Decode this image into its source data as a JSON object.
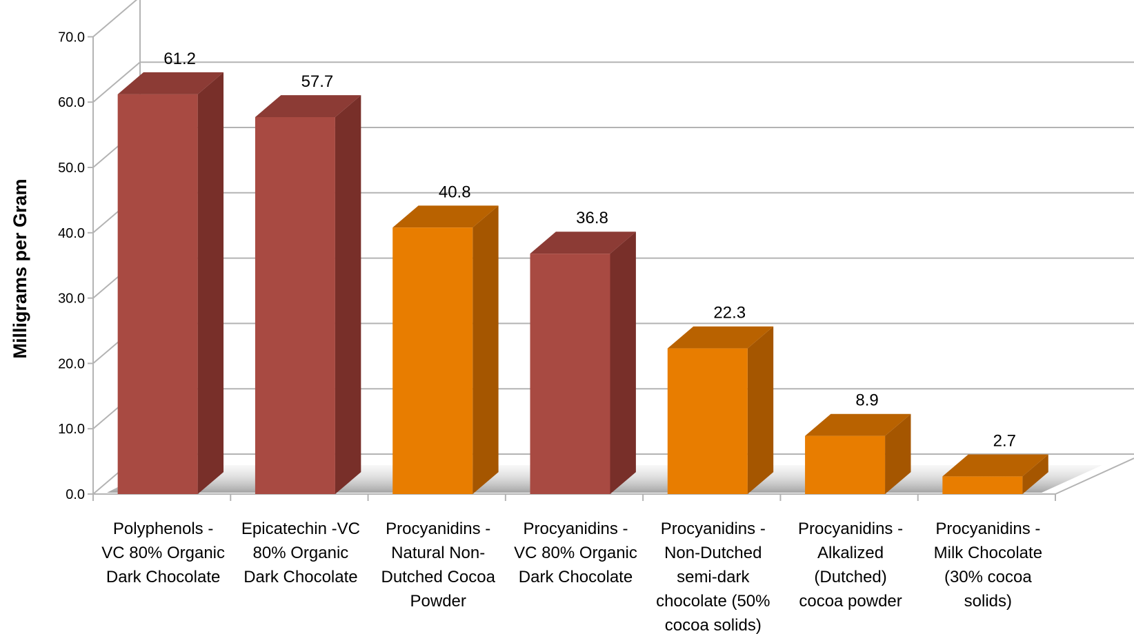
{
  "chart_data": {
    "type": "bar",
    "title": "",
    "xlabel": "",
    "ylabel": "Milligrams per Gram",
    "ylim": [
      0,
      70
    ],
    "yticks": [
      "0.0",
      "10.0",
      "20.0",
      "30.0",
      "40.0",
      "50.0",
      "60.0",
      "70.0"
    ],
    "grid": true,
    "legend": "none",
    "categories": [
      [
        "Polyphenols -",
        "VC 80% Organic",
        "Dark Chocolate"
      ],
      [
        "Epicatechin -VC",
        "80% Organic",
        "Dark Chocolate"
      ],
      [
        "Procyanidins -",
        "Natural Non-",
        "Dutched Cocoa",
        "Powder"
      ],
      [
        "Procyanidins -",
        "VC 80% Organic",
        "Dark Chocolate"
      ],
      [
        "Procyanidins -",
        "Non-Dutched",
        "semi-dark",
        "chocolate (50%",
        "cocoa solids)"
      ],
      [
        "Procyanidins -",
        "Alkalized",
        "(Dutched)",
        "cocoa powder"
      ],
      [
        "Procyanidins -",
        "Milk Chocolate",
        "(30% cocoa",
        "solids)"
      ]
    ],
    "values": [
      61.2,
      57.7,
      40.8,
      36.8,
      22.3,
      8.9,
      2.7
    ],
    "value_labels": [
      "61.2",
      "57.7",
      "40.8",
      "36.8",
      "22.3",
      "8.9",
      "2.7"
    ],
    "bar_colors": [
      "#a84a42",
      "#a84a42",
      "#e87d00",
      "#a84a42",
      "#e87d00",
      "#e87d00",
      "#e87d00"
    ],
    "colors": {
      "red": {
        "front": "#a84a42",
        "top": "#8c3b35",
        "side": "#782f29"
      },
      "orange": {
        "front": "#e87d00",
        "top": "#b96200",
        "side": "#a55600"
      }
    }
  }
}
